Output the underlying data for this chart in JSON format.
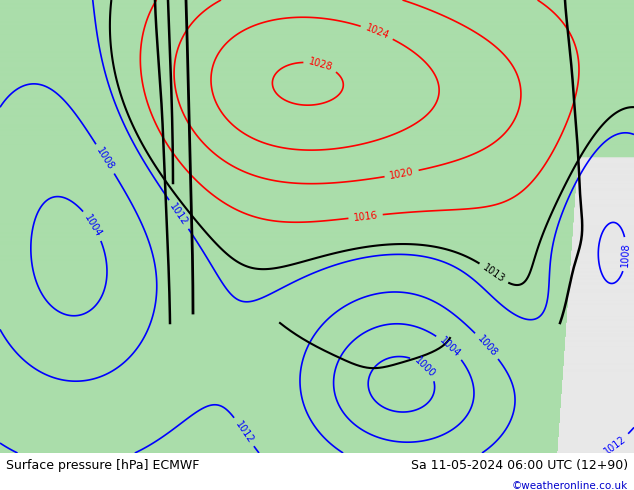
{
  "title_left": "Surface pressure [hPa] ECMWF",
  "title_right": "Sa 11-05-2024 06:00 UTC (12+90)",
  "watermark": "©weatheronline.co.uk",
  "watermark_color": "#0000cc",
  "land_color": "#aaddaa",
  "sea_color": "#e8e8e8",
  "deep_land_color": "#99cc99",
  "label_font_size": 9,
  "bottom_bar_color": "#ffffff",
  "fig_width": 6.34,
  "fig_height": 4.9,
  "dpi": 100
}
